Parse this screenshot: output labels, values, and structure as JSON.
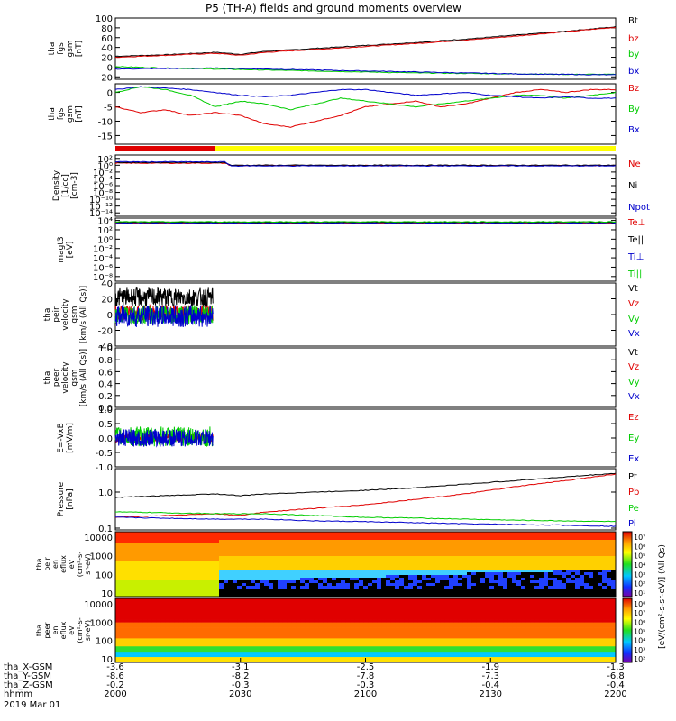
{
  "chart_data": {
    "type": "line",
    "title": "P5 (TH-A) fields and ground moments overview",
    "colors": {
      "black": "#000000",
      "red": "#e00000",
      "green": "#00cc00",
      "blue": "#0000cc",
      "yellow": "#ffff00"
    },
    "panels": [
      {
        "id": "fgs-gsm-total",
        "ylabel_lines": [
          "tha",
          "fgs",
          "gsm",
          "[nT]"
        ],
        "ylim": [
          -25,
          100
        ],
        "yticks": [
          "100",
          "80",
          "60",
          "40",
          "20",
          "0",
          "-20"
        ],
        "ytick_values": [
          100,
          80,
          60,
          40,
          20,
          0,
          -20
        ],
        "series": [
          {
            "name": "Bt",
            "color": "#000000",
            "x": [
              0,
              0.1,
              0.2,
              0.25,
              0.3,
              0.4,
              0.5,
              0.6,
              0.7,
              0.8,
              0.9,
              1.0
            ],
            "y": [
              22,
              25,
              30,
              26,
              32,
              38,
              44,
              50,
              57,
              65,
              73,
              82
            ]
          },
          {
            "name": "bz",
            "color": "#e00000",
            "x": [
              0,
              0.1,
              0.2,
              0.25,
              0.3,
              0.4,
              0.5,
              0.6,
              0.7,
              0.8,
              0.9,
              1.0
            ],
            "y": [
              20,
              24,
              28,
              24,
              30,
              36,
              42,
              48,
              55,
              63,
              72,
              81
            ]
          },
          {
            "name": "by",
            "color": "#00cc00",
            "x": [
              0,
              0.1,
              0.2,
              0.3,
              0.4,
              0.5,
              0.6,
              0.7,
              0.8,
              0.9,
              1.0
            ],
            "y": [
              1,
              -2,
              -4,
              -6,
              -8,
              -10,
              -12,
              -13,
              -14,
              -15,
              -15
            ]
          },
          {
            "name": "bx",
            "color": "#0000cc",
            "x": [
              0,
              0.1,
              0.2,
              0.3,
              0.4,
              0.5,
              0.6,
              0.7,
              0.8,
              0.9,
              1.0
            ],
            "y": [
              -4,
              -3,
              -2,
              -4,
              -6,
              -8,
              -10,
              -12,
              -14,
              -15,
              -16
            ]
          }
        ]
      },
      {
        "id": "fgs-gsm-zoom",
        "ylabel_lines": [
          "tha",
          "fgs",
          "gsm",
          "[nT]"
        ],
        "ylim": [
          -18,
          3
        ],
        "yticks": [
          "0",
          "-5",
          "-10",
          "-15"
        ],
        "ytick_values": [
          0,
          -5,
          -10,
          -15
        ],
        "series": [
          {
            "name": "Bz",
            "color": "#e00000",
            "x": [
              0,
              0.05,
              0.1,
              0.15,
              0.2,
              0.25,
              0.3,
              0.35,
              0.4,
              0.45,
              0.5,
              0.55,
              0.6,
              0.65,
              0.7,
              0.75,
              0.8,
              0.85,
              0.9,
              0.95,
              1.0
            ],
            "y": [
              -5,
              -7,
              -6,
              -8,
              -7,
              -8,
              -11,
              -12,
              -10,
              -8,
              -5,
              -4,
              -3,
              -5,
              -4,
              -2,
              0,
              1,
              0,
              1,
              1
            ]
          },
          {
            "name": "By",
            "color": "#00cc00",
            "x": [
              0,
              0.05,
              0.1,
              0.15,
              0.2,
              0.25,
              0.3,
              0.35,
              0.4,
              0.45,
              0.5,
              0.55,
              0.6,
              0.65,
              0.7,
              0.75,
              0.8,
              0.85,
              0.9,
              0.95,
              1.0
            ],
            "y": [
              0,
              2,
              1,
              -1,
              -5,
              -3,
              -4,
              -6,
              -4,
              -2,
              -3,
              -4,
              -5,
              -4,
              -3,
              -2,
              -1,
              -1,
              -2,
              -1,
              0
            ]
          },
          {
            "name": "Bx",
            "color": "#0000cc",
            "x": [
              0,
              0.05,
              0.1,
              0.15,
              0.2,
              0.25,
              0.3,
              0.35,
              0.4,
              0.45,
              0.5,
              0.55,
              0.6,
              0.65,
              0.7,
              0.75,
              0.8,
              0.85,
              0.9,
              0.95,
              1.0
            ],
            "y": [
              1,
              2,
              1.5,
              1,
              0,
              -1,
              -1.5,
              -1,
              0,
              1,
              1,
              0,
              -1,
              -0.5,
              0,
              -1,
              -1.5,
              -2,
              -1.5,
              -2,
              -2
            ]
          }
        ]
      },
      {
        "id": "density",
        "ylabel_lines": [
          "Density",
          "[1/cc]",
          "[cm-3]"
        ],
        "log": true,
        "ylim": [
          -15,
          3
        ],
        "yticks": [
          "10²",
          "10⁰",
          "10⁻²",
          "10⁻⁴",
          "10⁻⁶",
          "10⁻⁸",
          "10⁻¹⁰",
          "10⁻¹²",
          "10⁻¹⁴"
        ],
        "ytick_values": [
          2,
          0,
          -2,
          -4,
          -6,
          -8,
          -10,
          -12,
          -14
        ],
        "series": [
          {
            "name": "Ne",
            "color": "#e00000",
            "x": [
              0,
              0.22,
              0.23,
              1.0
            ],
            "y": [
              0.6,
              0.6,
              -0.1,
              -0.1
            ]
          },
          {
            "name": "Ni",
            "color": "#000000",
            "x": [
              0,
              0.22,
              0.23,
              1.0
            ],
            "y": [
              0.8,
              0.8,
              0,
              0
            ]
          },
          {
            "name": "Npot",
            "color": "#0000cc",
            "x": [
              0,
              0.22,
              0.23,
              1.0
            ],
            "y": [
              1.0,
              1.0,
              -0.2,
              -0.2
            ]
          }
        ]
      },
      {
        "id": "temperature",
        "ylabel_lines": [
          "magt3",
          "[eV]"
        ],
        "log": true,
        "ylim": [
          -9,
          4.5
        ],
        "yticks": [
          "10⁴",
          "10²",
          "10⁰",
          "10⁻²",
          "10⁻⁴",
          "10⁻⁶",
          "10⁻⁸"
        ],
        "ytick_values": [
          4,
          2,
          0,
          -2,
          -4,
          -6,
          -8
        ],
        "series": [
          {
            "name": "Te⊥",
            "color": "#e00000",
            "x": [
              0,
              1.0
            ],
            "y": [
              3.5,
              3.5
            ]
          },
          {
            "name": "Te||",
            "color": "#000000",
            "x": [
              0,
              1.0
            ],
            "y": [
              3.6,
              3.6
            ]
          },
          {
            "name": "Ti⊥",
            "color": "#0000cc",
            "x": [
              0,
              1.0
            ],
            "y": [
              3.4,
              3.4
            ]
          },
          {
            "name": "Ti||",
            "color": "#00cc00",
            "x": [
              0,
              1.0
            ],
            "y": [
              3.7,
              3.7
            ]
          }
        ]
      },
      {
        "id": "peir-velocity",
        "ylabel_lines": [
          "tha",
          "peir",
          "velocity",
          "gsm",
          "[km/s (All Qs)]"
        ],
        "ylim": [
          -40,
          40
        ],
        "yticks": [
          "40",
          "20",
          "0",
          "-20",
          "-40"
        ],
        "ytick_values": [
          40,
          20,
          0,
          -20,
          -40
        ],
        "noise_end": 0.195,
        "series": [
          {
            "name": "Vt",
            "color": "#000000",
            "base": 22,
            "amp": 12
          },
          {
            "name": "Vz",
            "color": "#e00000",
            "base": 2,
            "amp": 10
          },
          {
            "name": "Vy",
            "color": "#00cc00",
            "base": 0,
            "amp": 12
          },
          {
            "name": "Vx",
            "color": "#0000cc",
            "base": -2,
            "amp": 14
          }
        ]
      },
      {
        "id": "peer-velocity",
        "ylabel_lines": [
          "tha",
          "peer",
          "velocity",
          "gsm",
          "[km/s (All Qs)]"
        ],
        "ylim": [
          0,
          1
        ],
        "yticks": [
          "1.0",
          "0.8",
          "0.6",
          "0.4",
          "0.2",
          "0.0"
        ],
        "ytick_values": [
          1.0,
          0.8,
          0.6,
          0.4,
          0.2,
          0.0
        ],
        "series": [
          {
            "name": "Vt",
            "color": "#000000"
          },
          {
            "name": "Vz",
            "color": "#e00000"
          },
          {
            "name": "Vy",
            "color": "#00cc00"
          },
          {
            "name": "Vx",
            "color": "#0000cc"
          }
        ]
      },
      {
        "id": "efield",
        "ylabel_lines": [
          "E=-VxB",
          "[mV/m]"
        ],
        "ylim": [
          -1.0,
          1.0
        ],
        "yticks": [
          "1.0",
          "0.5",
          "0.0",
          "-0.5",
          "-1.0"
        ],
        "ytick_values": [
          1.0,
          0.5,
          0.0,
          -0.5,
          -1.0
        ],
        "noise_end": 0.195,
        "series": [
          {
            "name": "Ez",
            "color": "#e00000",
            "base": 0,
            "amp": 0.15
          },
          {
            "name": "Ey",
            "color": "#00cc00",
            "base": 0.05,
            "amp": 0.35
          },
          {
            "name": "Ex",
            "color": "#0000cc",
            "base": 0,
            "amp": 0.3
          }
        ]
      },
      {
        "id": "pressure",
        "ylabel_lines": [
          "Pressure",
          "[nPa]"
        ],
        "log": true,
        "ylim": [
          -1.05,
          0.65
        ],
        "yticks": [
          "1.0",
          "0.1"
        ],
        "ytick_values": [
          0,
          -1
        ],
        "series": [
          {
            "name": "Pt",
            "color": "#000000",
            "x": [
              0,
              0.2,
              0.25,
              0.3,
              0.4,
              0.5,
              0.6,
              0.7,
              0.8,
              0.9,
              1.0
            ],
            "y": [
              -0.15,
              -0.05,
              -0.1,
              -0.05,
              0,
              0.05,
              0.12,
              0.22,
              0.32,
              0.42,
              0.52
            ]
          },
          {
            "name": "Pb",
            "color": "#e00000",
            "x": [
              0,
              0.2,
              0.25,
              0.3,
              0.4,
              0.5,
              0.6,
              0.7,
              0.8,
              0.9,
              1.0
            ],
            "y": [
              -0.7,
              -0.6,
              -0.65,
              -0.55,
              -0.45,
              -0.35,
              -0.2,
              -0.05,
              0.15,
              0.32,
              0.5
            ]
          },
          {
            "name": "Pe",
            "color": "#00cc00",
            "x": [
              0,
              0.2,
              0.3,
              0.4,
              0.5,
              0.6,
              0.7,
              0.8,
              0.9,
              1.0
            ],
            "y": [
              -0.55,
              -0.6,
              -0.6,
              -0.65,
              -0.7,
              -0.72,
              -0.75,
              -0.78,
              -0.8,
              -0.82
            ]
          },
          {
            "name": "Pi",
            "color": "#0000cc",
            "x": [
              0,
              0.2,
              0.3,
              0.4,
              0.5,
              0.6,
              0.7,
              0.8,
              0.9,
              1.0
            ],
            "y": [
              -0.7,
              -0.75,
              -0.75,
              -0.8,
              -0.82,
              -0.85,
              -0.88,
              -0.9,
              -0.92,
              -0.95
            ]
          }
        ]
      }
    ],
    "spectrograms": [
      {
        "id": "peir-eflux",
        "ylabel_lines": [
          "tha",
          "peir",
          "en",
          "eflux",
          "eV",
          "(cm²-s-",
          "sr-eV)"
        ],
        "yticks": [
          "10000",
          "1000",
          "100",
          "10"
        ],
        "ytick_values": [
          4,
          3,
          2,
          1
        ],
        "type": "ion"
      },
      {
        "id": "peer-eflux",
        "ylabel_lines": [
          "tha",
          "peer",
          "en",
          "eflux",
          "eV",
          "(cm²-s-",
          "sr-eV)"
        ],
        "yticks": [
          "10000",
          "1000",
          "100",
          "10"
        ],
        "ytick_values": [
          4,
          3,
          2,
          1
        ],
        "type": "electron"
      }
    ],
    "colorbar_labels": {
      "ion": [
        "10⁷",
        "10⁶",
        "10⁵",
        "10⁴",
        "10³",
        "10²",
        "10¹"
      ],
      "electron": [
        "10⁸",
        "10⁷",
        "10⁶",
        "10⁵",
        "10⁴",
        "10³",
        "10²"
      ],
      "units": "[eV/(cm²-s-sr-eV)] (All Qs)"
    },
    "mode_bar": {
      "segments": [
        {
          "x0": 0,
          "x1": 0.2,
          "color": "#e00000"
        },
        {
          "x0": 0.2,
          "x1": 1.0,
          "color": "#ffff00"
        }
      ]
    },
    "xaxis": {
      "row_labels": [
        "tha_X-GSM",
        "tha_Y-GSM",
        "tha_Z-GSM",
        "hhmm",
        "2019 Mar 01"
      ],
      "ticks": [
        {
          "x": 0.0,
          "vals": [
            "-3.6",
            "-8.6",
            "-0.2",
            "2000"
          ]
        },
        {
          "x": 0.2,
          "vals": [
            "-3.1",
            "-8.2",
            "-0.3",
            "2030"
          ]
        },
        {
          "x": 0.4,
          "vals": [
            "-2.5",
            "-7.8",
            "-0.3",
            "2100"
          ]
        },
        {
          "x": 0.6,
          "vals": [
            "-1.9",
            "-7.3",
            "-0.4",
            "2130"
          ]
        },
        {
          "x": 0.8,
          "vals": [
            "-1.3",
            "-6.8",
            "-0.4",
            "2200"
          ]
        }
      ]
    }
  }
}
